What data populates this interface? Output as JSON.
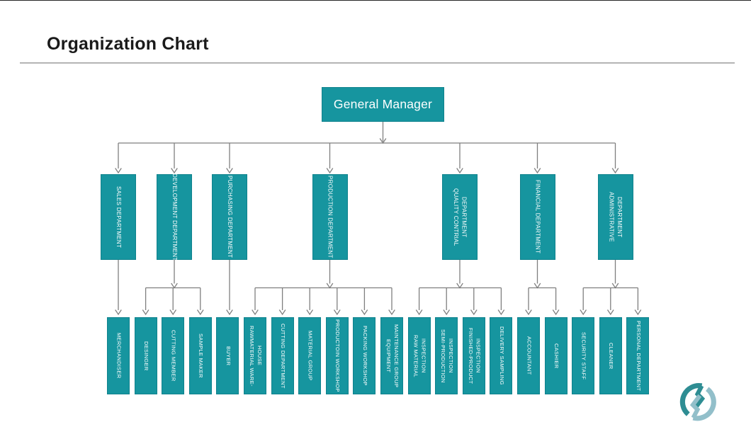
{
  "page": {
    "title": "Organization Chart"
  },
  "org_chart": {
    "root": {
      "label": "General Manager"
    },
    "departments": [
      {
        "label": "SALES DEPARTMENT",
        "children": [
          "MERCHANDISER"
        ]
      },
      {
        "label": "DEVELOPMENT DEPARTMENT",
        "children": [
          "DESINGER",
          "CUTTING MEMBER",
          "SAMPLE MAKER"
        ]
      },
      {
        "label": "PURCHASING DEPARTMENT",
        "children": [
          "BUYER"
        ]
      },
      {
        "label": "PRODUCTION DEPARTMENT",
        "children": [
          "RAWMATERIAL WARE-\nHOUSE",
          "CUTTING DEPARTMENT",
          "MATERIAL GROUP",
          "PRODUCTOIN WORKSHOP",
          "PACKING WORKSHOP",
          "EQUIPMENT\nMAINTENANCE GROUP"
        ]
      },
      {
        "label": "QUALITY CONTRIAL\nDEPARTMENT",
        "children": [
          "RAW MATERIAL\nINSPECTION",
          "SEMI-PRODUCTION\nINSPECTION",
          "FINISHED-PRODUCT\nINSPECTION",
          "DELIVERY SAMPLING"
        ]
      },
      {
        "label": "FINANCIAL DEPARTMENT",
        "children": [
          "ACCOUNTANT",
          "CASHIER"
        ]
      },
      {
        "label": "ADMINISTRATIVE\nDEPARTMENT",
        "children": [
          "SECURITY STAFF",
          "CLEANER",
          "PERSONAL DEPARTMENT"
        ]
      }
    ],
    "colors": {
      "box_fill": "#16959F",
      "box_border": "#0F828D",
      "box_text": "#FFFFFF",
      "connector": "#7F7F7F"
    }
  },
  "logo": {
    "primary_color": "#2E8D93",
    "secondary_color": "#92BFCA"
  }
}
